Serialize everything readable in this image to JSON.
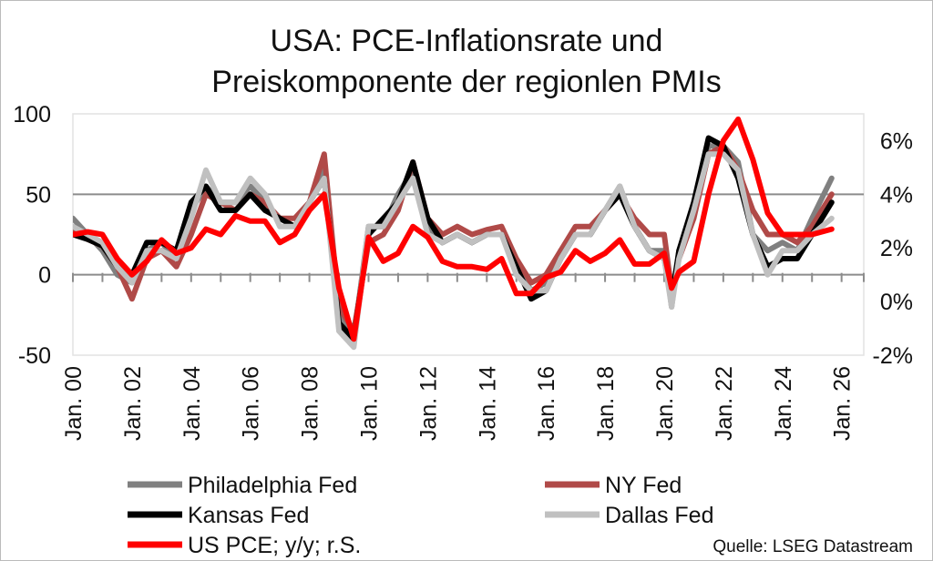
{
  "chart_data": {
    "type": "line",
    "title": [
      "USA: PCE-Inflationsrate und",
      "Preiskomponente der regionlen PMIs"
    ],
    "x": [
      "2000-01",
      "2000-07",
      "2001-01",
      "2001-07",
      "2002-01",
      "2002-07",
      "2003-01",
      "2003-07",
      "2004-01",
      "2004-07",
      "2005-01",
      "2005-07",
      "2006-01",
      "2006-07",
      "2007-01",
      "2007-07",
      "2008-01",
      "2008-07",
      "2009-01",
      "2009-07",
      "2010-01",
      "2010-07",
      "2011-01",
      "2011-07",
      "2012-01",
      "2012-07",
      "2013-01",
      "2013-07",
      "2014-01",
      "2014-07",
      "2015-01",
      "2015-07",
      "2016-01",
      "2016-07",
      "2017-01",
      "2017-07",
      "2018-01",
      "2018-07",
      "2019-01",
      "2019-07",
      "2020-01",
      "2020-04",
      "2020-07",
      "2021-01",
      "2021-07",
      "2022-01",
      "2022-07",
      "2023-01",
      "2023-07",
      "2024-01",
      "2024-07",
      "2025-01",
      "2025-09"
    ],
    "xlim": [
      "2000-01",
      "2026-10"
    ],
    "x_tick_labels": [
      "Jan. 00",
      "Jan. 02",
      "Jan. 04",
      "Jan. 06",
      "Jan. 08",
      "Jan. 10",
      "Jan. 12",
      "Jan. 14",
      "Jan. 16",
      "Jan. 18",
      "Jan. 20",
      "Jan. 22",
      "Jan. 24",
      "Jan. 26"
    ],
    "left_axis": {
      "ylim": [
        -50,
        100
      ],
      "ticks": [
        -50,
        0,
        50,
        100
      ],
      "tick_labels": [
        "-50",
        "0",
        "50",
        "100"
      ]
    },
    "right_axis": {
      "ylim": [
        -2,
        7
      ],
      "ticks": [
        -2,
        0,
        2,
        4,
        6
      ],
      "tick_labels": [
        "-2%",
        "0%",
        "2%",
        "4%",
        "6%"
      ]
    },
    "reference_line": 50,
    "legend_placement": "bottom",
    "series": [
      {
        "name": "Philadelphia Fed",
        "axis": "left",
        "color": "#808080",
        "values": [
          35,
          25,
          15,
          0,
          -5,
          15,
          20,
          10,
          40,
          55,
          45,
          45,
          55,
          45,
          35,
          30,
          45,
          65,
          -25,
          -40,
          30,
          30,
          50,
          65,
          30,
          20,
          25,
          20,
          25,
          25,
          5,
          -10,
          -5,
          15,
          25,
          25,
          40,
          55,
          30,
          15,
          15,
          -20,
          15,
          40,
          80,
          80,
          70,
          25,
          15,
          20,
          15,
          35,
          60
        ]
      },
      {
        "name": "NY Fed",
        "axis": "left",
        "color": "#b04a48",
        "values": [
          28,
          22,
          18,
          5,
          -15,
          10,
          15,
          5,
          25,
          50,
          45,
          40,
          50,
          45,
          35,
          35,
          45,
          75,
          -20,
          -35,
          20,
          25,
          40,
          70,
          35,
          25,
          30,
          25,
          28,
          30,
          10,
          -5,
          0,
          15,
          30,
          30,
          40,
          50,
          35,
          25,
          25,
          -10,
          10,
          35,
          75,
          80,
          65,
          40,
          25,
          25,
          20,
          30,
          50
        ]
      },
      {
        "name": "Kansas Fed",
        "axis": "left",
        "color": "#000000",
        "values": [
          25,
          22,
          18,
          5,
          0,
          20,
          20,
          15,
          45,
          55,
          40,
          40,
          50,
          40,
          35,
          30,
          45,
          60,
          -30,
          -40,
          25,
          35,
          45,
          70,
          35,
          20,
          25,
          20,
          25,
          25,
          5,
          -15,
          -10,
          10,
          25,
          25,
          40,
          50,
          30,
          15,
          10,
          -15,
          15,
          45,
          85,
          80,
          60,
          25,
          5,
          10,
          10,
          25,
          45
        ]
      },
      {
        "name": "Dallas Fed",
        "axis": "left",
        "color": "#c0c0c0",
        "values": [
          30,
          25,
          20,
          5,
          -5,
          15,
          15,
          10,
          35,
          65,
          45,
          45,
          60,
          50,
          30,
          30,
          45,
          60,
          -35,
          -45,
          30,
          30,
          45,
          60,
          25,
          20,
          25,
          20,
          25,
          25,
          0,
          -10,
          -10,
          10,
          25,
          25,
          40,
          55,
          30,
          15,
          10,
          -20,
          10,
          40,
          75,
          75,
          65,
          25,
          0,
          15,
          15,
          25,
          35
        ]
      },
      {
        "name": "US PCE; y/y; r.S.",
        "axis": "right",
        "color": "#ff0000",
        "values": [
          2.5,
          2.6,
          2.5,
          1.6,
          1.0,
          1.5,
          2.3,
          1.8,
          2.0,
          2.7,
          2.5,
          3.2,
          3.0,
          3.0,
          2.2,
          2.5,
          3.4,
          4.0,
          0.5,
          -1.4,
          2.4,
          1.5,
          1.8,
          2.8,
          2.4,
          1.5,
          1.3,
          1.3,
          1.2,
          1.6,
          0.3,
          0.3,
          0.9,
          1.1,
          1.9,
          1.5,
          1.8,
          2.3,
          1.4,
          1.4,
          1.8,
          0.5,
          1.1,
          1.5,
          4.0,
          6.0,
          6.8,
          5.3,
          3.3,
          2.5,
          2.5,
          2.5,
          2.7
        ]
      }
    ],
    "source": "Quelle: LSEG Datastream"
  }
}
